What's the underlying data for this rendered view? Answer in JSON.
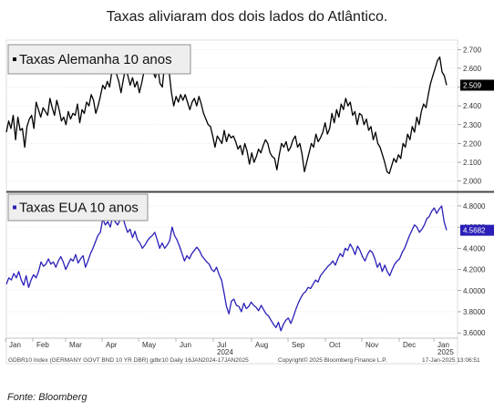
{
  "headline": "Taxas aliviaram dos dois lados do Atlântico.",
  "source": "Fonte: Bloomberg",
  "footer": {
    "left": "GDBR10 Index (GERMANY GOVT BND 10 YR DBR) gdbr10 Daily 16JAN2024-17JAN2025",
    "center": "Copyright© 2025 Bloomberg Finance L.P.",
    "right": "17-Jan-2025 13:06:51"
  },
  "colors": {
    "germany": "#000000",
    "us": "#2a1fb8",
    "grid": "#d0d0d0",
    "last_label_bg": "#000000"
  },
  "chart_data": [
    {
      "type": "line",
      "legend": "Taxas Alemanha 10 anos",
      "legend_marker_color": "#000000",
      "last_value_label": "2.509",
      "x_tick_labels": [
        "Jan",
        "Feb",
        "Mar",
        "Apr",
        "May",
        "Jun",
        "Jul",
        "Aug",
        "Sep",
        "Oct",
        "Nov",
        "Dec",
        "Jan"
      ],
      "x_sub_labels": {
        "2024": 6,
        "2025": 12
      },
      "ylim": [
        1.95,
        2.74
      ],
      "yticks": [
        2.0,
        2.1,
        2.2,
        2.3,
        2.4,
        2.5,
        2.6,
        2.7
      ],
      "ytick_labels": [
        "2.000",
        "2.100",
        "2.200",
        "2.300",
        "2.400",
        "2.500",
        "2.600",
        "2.700"
      ],
      "grid": true,
      "series": [
        {
          "values": [
            2.26,
            2.32,
            2.28,
            2.35,
            2.22,
            2.34,
            2.27,
            2.28,
            2.18,
            2.29,
            2.33,
            2.35,
            2.28,
            2.42,
            2.38,
            2.34,
            2.39,
            2.37,
            2.35,
            2.44,
            2.39,
            2.35,
            2.43,
            2.38,
            2.32,
            2.34,
            2.3,
            2.37,
            2.33,
            2.36,
            2.35,
            2.41,
            2.31,
            2.38,
            2.36,
            2.42,
            2.4,
            2.46,
            2.43,
            2.36,
            2.4,
            2.45,
            2.51,
            2.49,
            2.53,
            2.5,
            2.58,
            2.62,
            2.57,
            2.53,
            2.47,
            2.54,
            2.6,
            2.56,
            2.51,
            2.55,
            2.5,
            2.53,
            2.47,
            2.52,
            2.58,
            2.62,
            2.6,
            2.64,
            2.58,
            2.55,
            2.61,
            2.52,
            2.5,
            2.62,
            2.64,
            2.58,
            2.47,
            2.4,
            2.45,
            2.42,
            2.46,
            2.43,
            2.46,
            2.42,
            2.38,
            2.42,
            2.44,
            2.4,
            2.45,
            2.41,
            2.36,
            2.33,
            2.3,
            2.29,
            2.24,
            2.18,
            2.24,
            2.22,
            2.2,
            2.27,
            2.21,
            2.25,
            2.23,
            2.24,
            2.21,
            2.17,
            2.19,
            2.14,
            2.2,
            2.16,
            2.09,
            2.15,
            2.1,
            2.13,
            2.17,
            2.15,
            2.19,
            2.22,
            2.2,
            2.15,
            2.13,
            2.12,
            2.06,
            2.14,
            2.2,
            2.18,
            2.21,
            2.16,
            2.18,
            2.22,
            2.24,
            2.18,
            2.2,
            2.14,
            2.05,
            2.1,
            2.15,
            2.2,
            2.18,
            2.25,
            2.21,
            2.23,
            2.26,
            2.31,
            2.25,
            2.28,
            2.36,
            2.31,
            2.38,
            2.34,
            2.41,
            2.38,
            2.44,
            2.4,
            2.42,
            2.35,
            2.37,
            2.3,
            2.36,
            2.35,
            2.3,
            2.33,
            2.27,
            2.29,
            2.22,
            2.26,
            2.2,
            2.18,
            2.14,
            2.1,
            2.05,
            2.04,
            2.08,
            2.12,
            2.1,
            2.14,
            2.12,
            2.2,
            2.18,
            2.25,
            2.22,
            2.29,
            2.26,
            2.34,
            2.3,
            2.37,
            2.41,
            2.39,
            2.46,
            2.52,
            2.56,
            2.6,
            2.64,
            2.66,
            2.58,
            2.56,
            2.51
          ]
        }
      ]
    },
    {
      "type": "line",
      "legend": "Taxas EUA 10 anos",
      "legend_marker_color": "#2a1fb8",
      "last_value_label": "4.5682",
      "ylim": [
        3.55,
        4.92
      ],
      "yticks": [
        3.6,
        3.8,
        4.0,
        4.2,
        4.4,
        4.6,
        4.8
      ],
      "ytick_labels": [
        "3.6000",
        "3.8000",
        "4.0000",
        "4.2000",
        "4.4000",
        "4.6000",
        "4.8000"
      ],
      "grid": true,
      "series": [
        {
          "values": [
            4.06,
            4.12,
            4.1,
            4.16,
            4.12,
            4.18,
            4.1,
            4.05,
            4.14,
            4.03,
            4.1,
            4.15,
            4.12,
            4.18,
            4.27,
            4.23,
            4.25,
            4.3,
            4.25,
            4.27,
            4.22,
            4.28,
            4.32,
            4.27,
            4.2,
            4.25,
            4.3,
            4.28,
            4.34,
            4.26,
            4.3,
            4.33,
            4.22,
            4.28,
            4.35,
            4.4,
            4.46,
            4.52,
            4.55,
            4.68,
            4.62,
            4.65,
            4.6,
            4.7,
            4.65,
            4.62,
            4.67,
            4.7,
            4.62,
            4.55,
            4.58,
            4.5,
            4.56,
            4.48,
            4.45,
            4.4,
            4.43,
            4.47,
            4.5,
            4.52,
            4.55,
            4.48,
            4.4,
            4.45,
            4.4,
            4.43,
            4.47,
            4.6,
            4.52,
            4.48,
            4.42,
            4.35,
            4.28,
            4.33,
            4.3,
            4.35,
            4.38,
            4.41,
            4.38,
            4.33,
            4.3,
            4.27,
            4.25,
            4.2,
            4.18,
            4.22,
            4.15,
            4.1,
            3.98,
            3.85,
            3.78,
            3.9,
            3.92,
            3.86,
            3.85,
            3.8,
            3.88,
            3.83,
            3.85,
            3.89,
            3.86,
            3.84,
            3.81,
            3.86,
            3.82,
            3.78,
            3.76,
            3.72,
            3.68,
            3.65,
            3.7,
            3.62,
            3.68,
            3.72,
            3.74,
            3.69,
            3.75,
            3.82,
            3.88,
            3.93,
            3.97,
            3.99,
            4.03,
            4.02,
            4.06,
            4.1,
            4.08,
            4.14,
            4.17,
            4.2,
            4.23,
            4.25,
            4.28,
            4.24,
            4.3,
            4.35,
            4.32,
            4.4,
            4.38,
            4.44,
            4.4,
            4.34,
            4.42,
            4.38,
            4.32,
            4.28,
            4.34,
            4.38,
            4.36,
            4.3,
            4.22,
            4.26,
            4.18,
            4.24,
            4.18,
            4.14,
            4.2,
            4.25,
            4.28,
            4.3,
            4.36,
            4.4,
            4.46,
            4.52,
            4.57,
            4.62,
            4.6,
            4.55,
            4.58,
            4.62,
            4.68,
            4.7,
            4.75,
            4.78,
            4.73,
            4.77,
            4.8,
            4.65,
            4.57
          ]
        }
      ]
    }
  ]
}
